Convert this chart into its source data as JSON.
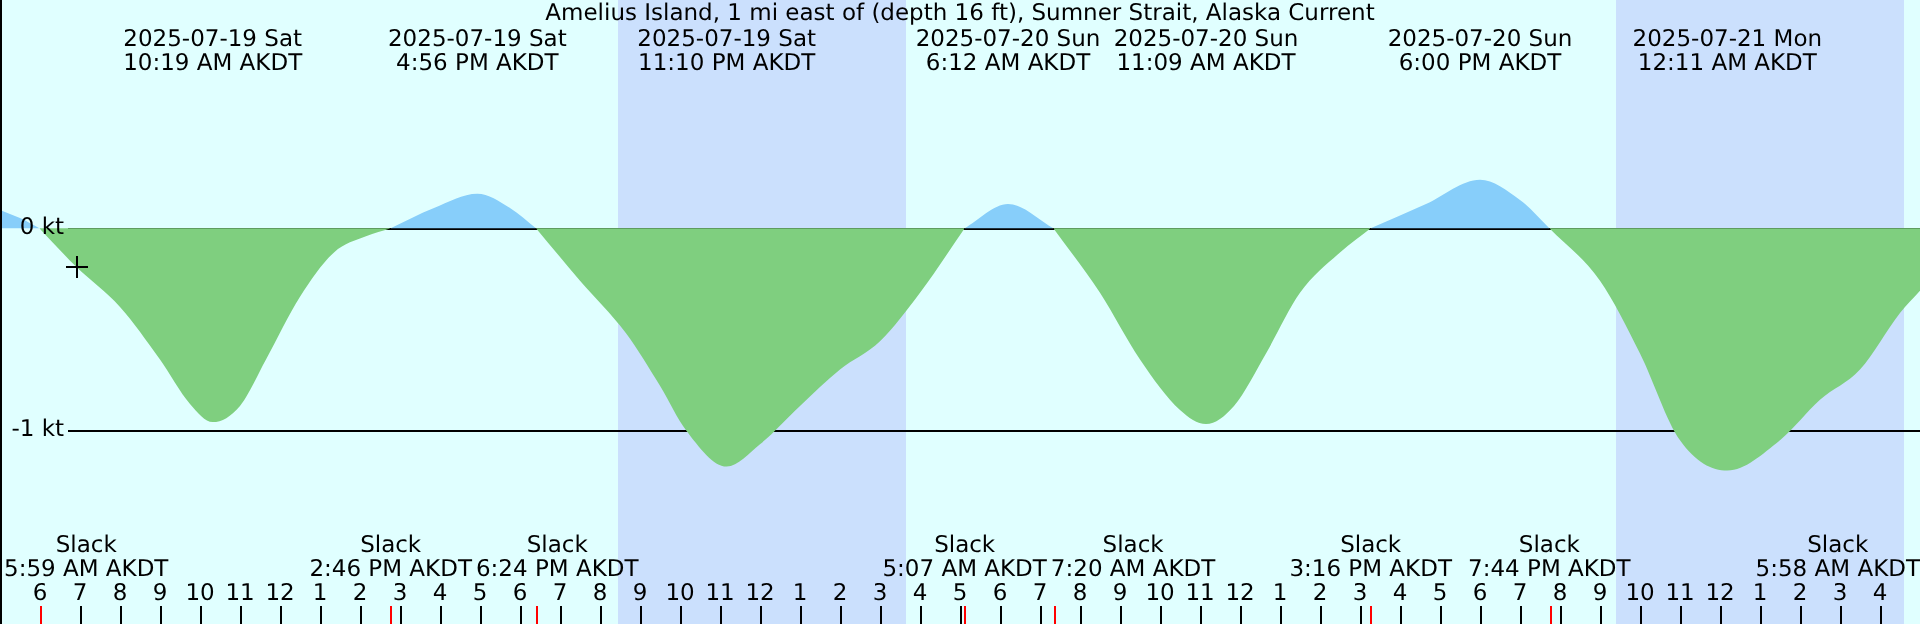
{
  "chart_data": {
    "type": "area",
    "title": "Amelius Island, 1 mi east of (depth 16 ft), Sumner Strait, Alaska Current",
    "x": [
      "2025-07-19T05:00",
      "2025-07-19T05:30",
      "2025-07-19T05:59",
      "2025-07-19T06:54",
      "2025-07-19T08:00",
      "2025-07-19T09:00",
      "2025-07-19T09:45",
      "2025-07-19T10:19",
      "2025-07-19T11:00",
      "2025-07-19T11:39",
      "2025-07-19T12:30",
      "2025-07-19T13:21",
      "2025-07-19T14:09",
      "2025-07-19T14:46",
      "2025-07-19T15:51",
      "2025-07-19T16:56",
      "2025-07-19T17:45",
      "2025-07-19T18:24",
      "2025-07-19T19:30",
      "2025-07-19T20:39",
      "2025-07-19T21:30",
      "2025-07-19T22:09",
      "2025-07-19T23:10",
      "2025-07-20T00:00",
      "2025-07-20T01:00",
      "2025-07-20T02:00",
      "2025-07-20T03:00",
      "2025-07-20T04:00",
      "2025-07-20T05:07",
      "2025-07-20T06:12",
      "2025-07-20T07:20",
      "2025-07-20T08:30",
      "2025-07-20T09:30",
      "2025-07-20T10:30",
      "2025-07-20T11:09",
      "2025-07-20T11:51",
      "2025-07-20T12:39",
      "2025-07-20T13:30",
      "2025-07-20T14:30",
      "2025-07-20T15:16",
      "2025-07-20T16:39",
      "2025-07-20T18:00",
      "2025-07-20T19:00",
      "2025-07-20T19:44",
      "2025-07-20T21:00",
      "2025-07-20T22:00",
      "2025-07-20T23:00",
      "2025-07-21T00:11",
      "2025-07-21T01:30",
      "2025-07-21T02:30",
      "2025-07-21T03:30",
      "2025-07-21T04:30",
      "2025-07-21T05:00"
    ],
    "series": [
      {
        "color": "#87cefa",
        "values": [
          0.09,
          0.05,
          0,
          null,
          null,
          null,
          null,
          null,
          null,
          null,
          null,
          null,
          null,
          0,
          0.1,
          0.17,
          0.1,
          0,
          null,
          null,
          null,
          null,
          null,
          null,
          null,
          null,
          null,
          null,
          0,
          0.12,
          0,
          null,
          null,
          null,
          null,
          null,
          null,
          null,
          null,
          0,
          0.12,
          0.24,
          0.14,
          0,
          null,
          null,
          null,
          null,
          null,
          null,
          null,
          null,
          null
        ]
      },
      {
        "color": "#7fcf7f",
        "values": [
          null,
          null,
          0,
          -0.19,
          -0.39,
          -0.65,
          -0.87,
          -0.96,
          -0.88,
          -0.65,
          -0.34,
          -0.12,
          -0.04,
          0,
          null,
          null,
          null,
          0,
          -0.26,
          -0.52,
          -0.78,
          -1.0,
          -1.18,
          -1.07,
          -0.88,
          -0.7,
          -0.56,
          -0.32,
          0,
          null,
          0,
          -0.32,
          -0.65,
          -0.9,
          -0.97,
          -0.88,
          -0.62,
          -0.32,
          -0.12,
          0,
          null,
          null,
          null,
          0,
          -0.26,
          -0.62,
          -1.05,
          -1.2,
          -1.05,
          -0.85,
          -0.7,
          -0.42,
          -0.31
        ]
      }
    ],
    "xlim": [
      "2025-07-19T05:00",
      "2025-07-21T05:00"
    ],
    "xticks": [
      {
        "value": "2025-07-19T06:00",
        "label": "6"
      },
      {
        "value": "2025-07-19T07:00",
        "label": "7"
      },
      {
        "value": "2025-07-19T08:00",
        "label": "8"
      },
      {
        "value": "2025-07-19T09:00",
        "label": "9"
      },
      {
        "value": "2025-07-19T10:00",
        "label": "10"
      },
      {
        "value": "2025-07-19T11:00",
        "label": "11"
      },
      {
        "value": "2025-07-19T12:00",
        "label": "12"
      },
      {
        "value": "2025-07-19T13:00",
        "label": "1"
      },
      {
        "value": "2025-07-19T14:00",
        "label": "2"
      },
      {
        "value": "2025-07-19T15:00",
        "label": "3"
      },
      {
        "value": "2025-07-19T16:00",
        "label": "4"
      },
      {
        "value": "2025-07-19T17:00",
        "label": "5"
      },
      {
        "value": "2025-07-19T18:00",
        "label": "6"
      },
      {
        "value": "2025-07-19T19:00",
        "label": "7"
      },
      {
        "value": "2025-07-19T20:00",
        "label": "8"
      },
      {
        "value": "2025-07-19T21:00",
        "label": "9"
      },
      {
        "value": "2025-07-19T22:00",
        "label": "10"
      },
      {
        "value": "2025-07-19T23:00",
        "label": "11"
      },
      {
        "value": "2025-07-20T00:00",
        "label": "12"
      },
      {
        "value": "2025-07-20T01:00",
        "label": "1"
      },
      {
        "value": "2025-07-20T02:00",
        "label": "2"
      },
      {
        "value": "2025-07-20T03:00",
        "label": "3"
      },
      {
        "value": "2025-07-20T04:00",
        "label": "4"
      },
      {
        "value": "2025-07-20T05:00",
        "label": "5"
      },
      {
        "value": "2025-07-20T06:00",
        "label": "6"
      },
      {
        "value": "2025-07-20T07:00",
        "label": "7"
      },
      {
        "value": "2025-07-20T08:00",
        "label": "8"
      },
      {
        "value": "2025-07-20T09:00",
        "label": "9"
      },
      {
        "value": "2025-07-20T10:00",
        "label": "10"
      },
      {
        "value": "2025-07-20T11:00",
        "label": "11"
      },
      {
        "value": "2025-07-20T12:00",
        "label": "12"
      },
      {
        "value": "2025-07-20T13:00",
        "label": "1"
      },
      {
        "value": "2025-07-20T14:00",
        "label": "2"
      },
      {
        "value": "2025-07-20T15:00",
        "label": "3"
      },
      {
        "value": "2025-07-20T16:00",
        "label": "4"
      },
      {
        "value": "2025-07-20T17:00",
        "label": "5"
      },
      {
        "value": "2025-07-20T18:00",
        "label": "6"
      },
      {
        "value": "2025-07-20T19:00",
        "label": "7"
      },
      {
        "value": "2025-07-20T20:00",
        "label": "8"
      },
      {
        "value": "2025-07-20T21:00",
        "label": "9"
      },
      {
        "value": "2025-07-20T22:00",
        "label": "10"
      },
      {
        "value": "2025-07-20T23:00",
        "label": "11"
      },
      {
        "value": "2025-07-21T00:00",
        "label": "12"
      },
      {
        "value": "2025-07-21T01:00",
        "label": "1"
      },
      {
        "value": "2025-07-21T02:00",
        "label": "2"
      },
      {
        "value": "2025-07-21T03:00",
        "label": "3"
      },
      {
        "value": "2025-07-21T04:00",
        "label": "4"
      }
    ],
    "ylim": [
      -1.96,
      1.13
    ],
    "yticks": [
      {
        "value": 0,
        "label": "0 kt"
      },
      {
        "value": -1,
        "label": "-1 kt"
      }
    ],
    "grid": "y",
    "bands": [
      {
        "axis": "x",
        "from": "2025-07-19T20:27",
        "to": "2025-07-20T03:39",
        "color": "#cbe0fd"
      },
      {
        "axis": "x",
        "from": "2025-07-20T21:24",
        "to": "2025-07-21T04:36",
        "color": "#cbe0fd"
      }
    ],
    "ref_lines": [
      {
        "axis": "x",
        "value": "2025-07-19T05:59",
        "label": "Slack\n5:59 AM AKDT",
        "color": "#ff0000"
      },
      {
        "axis": "x",
        "value": "2025-07-19T14:46",
        "label": "Slack\n2:46 PM AKDT",
        "color": "#ff0000"
      },
      {
        "axis": "x",
        "value": "2025-07-19T18:24",
        "label": "Slack\n6:24 PM AKDT",
        "color": "#ff0000"
      },
      {
        "axis": "x",
        "value": "2025-07-20T05:07",
        "label": "Slack\n5:07 AM AKDT",
        "color": "#ff0000"
      },
      {
        "axis": "x",
        "value": "2025-07-20T07:20",
        "label": "Slack\n7:20 AM AKDT",
        "color": "#ff0000"
      },
      {
        "axis": "x",
        "value": "2025-07-20T15:16",
        "label": "Slack\n3:16 PM AKDT",
        "color": "#ff0000"
      },
      {
        "axis": "x",
        "value": "2025-07-20T19:44",
        "label": "Slack\n7:44 PM AKDT",
        "color": "#ff0000"
      }
    ],
    "annotations": [
      "2025-07-19 Sat\n10:19 AM AKDT",
      "2025-07-19 Sat\n4:56 PM AKDT",
      "2025-07-19 Sat\n11:10 PM AKDT",
      "2025-07-20 Sun\n6:12 AM AKDT",
      "2025-07-20 Sun\n11:09 AM AKDT",
      "2025-07-20 Sun\n6:00 PM AKDT",
      "2025-07-21 Mon\n12:11 AM AKDT",
      "Slack\n5:58 AM AKDT"
    ]
  }
}
